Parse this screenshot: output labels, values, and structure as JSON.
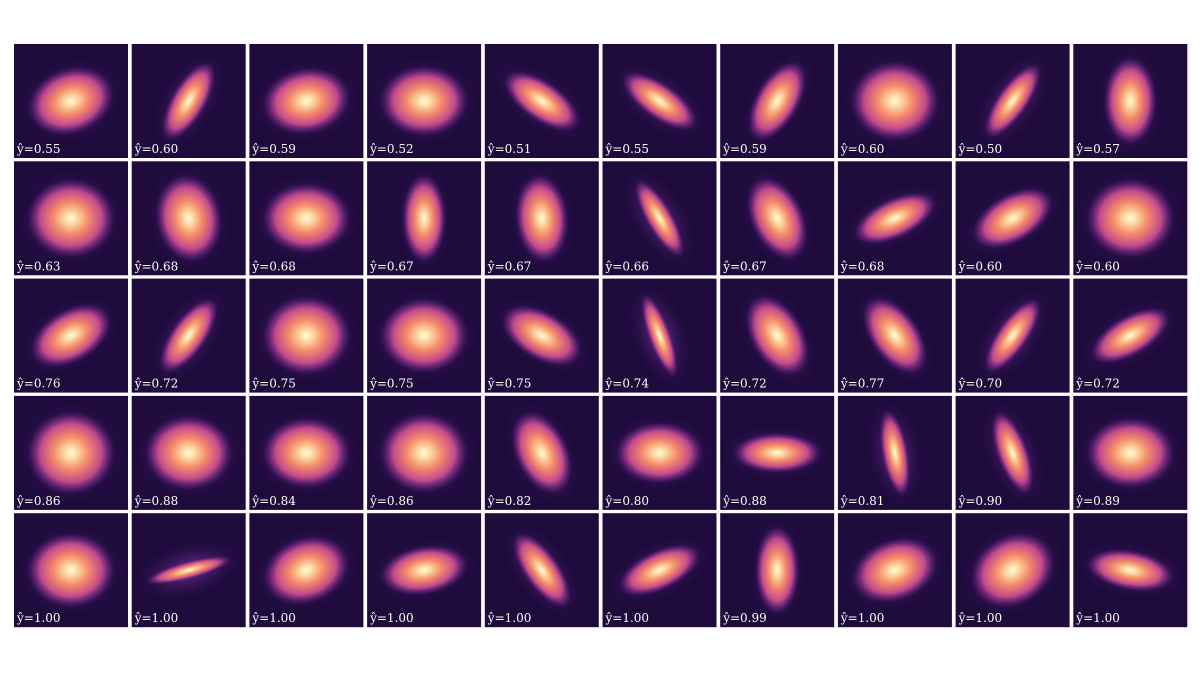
{
  "panels": [
    [
      "ŷ=0.55",
      "ŷ=0.60",
      "ŷ=0.59",
      "ŷ=0.52",
      "ŷ=0.51",
      "ŷ=0.55",
      "ŷ=0.59",
      "ŷ=0.60",
      "ŷ=0.50",
      "ŷ=0.57"
    ],
    [
      "ŷ=0.63",
      "ŷ=0.68",
      "ŷ=0.68",
      "ŷ=0.67",
      "ŷ=0.67",
      "ŷ=0.66",
      "ŷ=0.67",
      "ŷ=0.68",
      "ŷ=0.60",
      "ŷ=0.60"
    ],
    [
      "ŷ=0.76",
      "ŷ=0.72",
      "ŷ=0.75",
      "ŷ=0.75",
      "ŷ=0.75",
      "ŷ=0.74",
      "ŷ=0.72",
      "ŷ=0.77",
      "ŷ=0.70",
      "ŷ=0.72"
    ],
    [
      "ŷ=0.86",
      "ŷ=0.88",
      "ŷ=0.84",
      "ŷ=0.86",
      "ŷ=0.82",
      "ŷ=0.80",
      "ŷ=0.88",
      "ŷ=0.81",
      "ŷ=0.90",
      "ŷ=0.89"
    ],
    [
      "ŷ=1.00",
      "ŷ=1.00",
      "ŷ=1.00",
      "ŷ=1.00",
      "ŷ=1.00",
      "ŷ=1.00",
      "ŷ=0.99",
      "ŷ=1.00",
      "ŷ=1.00",
      "ŷ=1.00"
    ]
  ]
}
